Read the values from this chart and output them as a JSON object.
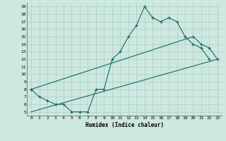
{
  "background_color": "#cce8e0",
  "grid_color": "#aacec6",
  "line_color": "#1a6b5a",
  "xlabel": "Humidex (Indice chaleur)",
  "xlim": [
    -0.5,
    23.5
  ],
  "ylim": [
    4.5,
    19.5
  ],
  "xticks": [
    0,
    1,
    2,
    3,
    4,
    5,
    6,
    7,
    8,
    9,
    10,
    11,
    12,
    13,
    14,
    15,
    16,
    17,
    18,
    19,
    20,
    21,
    22,
    23
  ],
  "yticks": [
    5,
    6,
    7,
    8,
    9,
    10,
    11,
    12,
    13,
    14,
    15,
    16,
    17,
    18,
    19
  ],
  "line1_x": [
    0,
    1,
    2,
    3,
    4,
    5,
    6,
    7,
    8,
    9,
    10,
    11,
    12,
    13,
    14,
    15,
    16,
    17,
    18,
    19,
    20,
    21,
    22
  ],
  "line1_y": [
    8,
    7,
    6.5,
    6,
    6,
    5,
    5,
    5,
    8,
    8,
    12,
    13,
    15,
    16.5,
    19,
    17.5,
    17,
    17.5,
    17,
    15,
    14,
    13.5,
    12
  ],
  "line2_x": [
    0,
    20,
    21,
    22,
    23
  ],
  "line2_y": [
    8,
    15,
    14,
    13.5,
    12
  ],
  "line3_x": [
    0,
    23
  ],
  "line3_y": [
    5,
    12
  ]
}
